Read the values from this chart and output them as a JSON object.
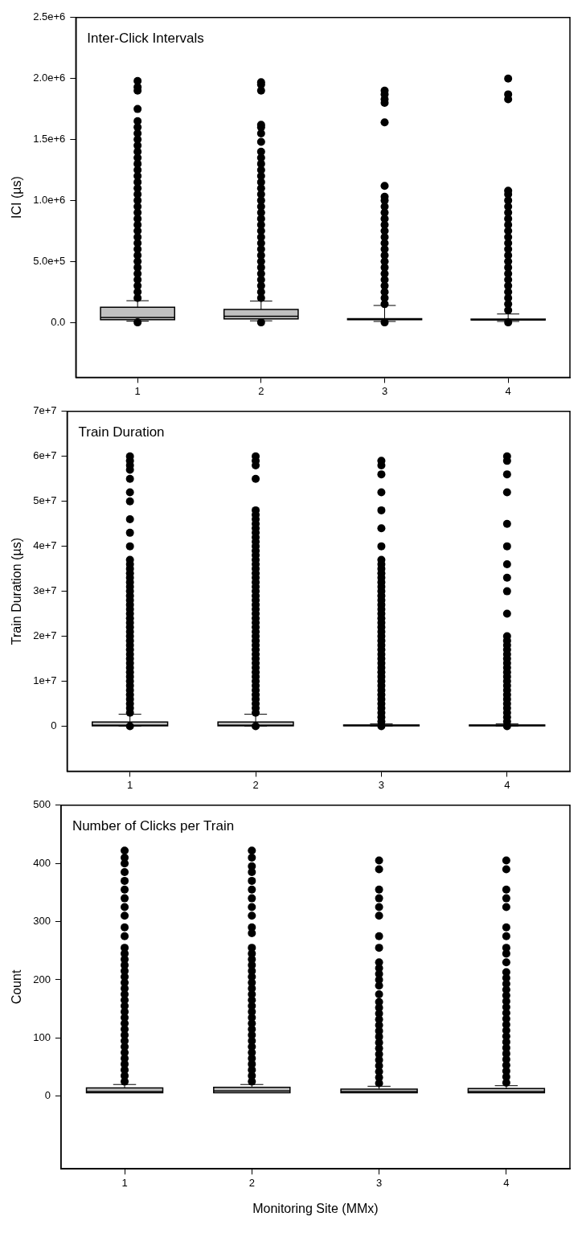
{
  "chart_data": [
    {
      "type": "box",
      "title": "Inter-Click Intervals",
      "ylabel": "ICI (µs)",
      "categories": [
        "1",
        "2",
        "3",
        "4"
      ],
      "color": "#c0c0c0",
      "ylim": [
        -450000,
        2500000
      ],
      "yticks": [
        {
          "value": 0,
          "label": "0.0"
        },
        {
          "value": 500000,
          "label": "5.0e+5"
        },
        {
          "value": 1000000,
          "label": "1.0e+6"
        },
        {
          "value": 1500000,
          "label": "1.5e+6"
        },
        {
          "value": 2000000,
          "label": "2.0e+6"
        },
        {
          "value": 2500000,
          "label": "2.5e+6"
        }
      ],
      "boxes": [
        {
          "low": 10000,
          "q1": 23000,
          "median": 40000,
          "q3": 125000,
          "high": 178000,
          "outliers": [
            0,
            200000,
            250000,
            300000,
            350000,
            400000,
            450000,
            500000,
            550000,
            600000,
            650000,
            700000,
            750000,
            800000,
            850000,
            900000,
            950000,
            1000000,
            1050000,
            1100000,
            1150000,
            1200000,
            1250000,
            1300000,
            1350000,
            1400000,
            1450000,
            1500000,
            1550000,
            1600000,
            1650000,
            1750000,
            1900000,
            1930000,
            1980000
          ]
        },
        {
          "low": 13000,
          "q1": 28000,
          "median": 51000,
          "q3": 106000,
          "high": 175000,
          "outliers": [
            0,
            200000,
            250000,
            300000,
            350000,
            400000,
            450000,
            500000,
            550000,
            600000,
            650000,
            700000,
            750000,
            800000,
            850000,
            900000,
            950000,
            1000000,
            1050000,
            1100000,
            1150000,
            1200000,
            1250000,
            1300000,
            1350000,
            1400000,
            1480000,
            1550000,
            1600000,
            1620000,
            1900000,
            1950000,
            1970000
          ]
        },
        {
          "low": 8000,
          "q1": 22000,
          "median": 26000,
          "q3": 30000,
          "high": 139000,
          "outliers": [
            0,
            150000,
            200000,
            250000,
            300000,
            350000,
            400000,
            450000,
            500000,
            550000,
            600000,
            650000,
            700000,
            750000,
            800000,
            850000,
            900000,
            950000,
            1000000,
            1030000,
            1120000,
            1640000,
            1800000,
            1830000,
            1870000,
            1900000
          ]
        },
        {
          "low": 8000,
          "q1": 20000,
          "median": 23000,
          "q3": 27000,
          "high": 69000,
          "outliers": [
            0,
            100000,
            150000,
            200000,
            250000,
            300000,
            350000,
            400000,
            450000,
            500000,
            550000,
            600000,
            650000,
            700000,
            750000,
            800000,
            850000,
            900000,
            950000,
            1000000,
            1050000,
            1080000,
            1830000,
            1870000,
            2000000
          ]
        }
      ]
    },
    {
      "type": "box",
      "title": "Train Duration",
      "ylabel": "Train Duration (µs)",
      "categories": [
        "1",
        "2",
        "3",
        "4"
      ],
      "color": "#c0c0c0",
      "ylim": [
        -10000000,
        70000000
      ],
      "yticks": [
        {
          "value": 0,
          "label": "0"
        },
        {
          "value": 10000000,
          "label": "1e+7"
        },
        {
          "value": 20000000,
          "label": "2e+7"
        },
        {
          "value": 30000000,
          "label": "3e+7"
        },
        {
          "value": 40000000,
          "label": "4e+7"
        },
        {
          "value": 50000000,
          "label": "5e+7"
        },
        {
          "value": 60000000,
          "label": "6e+7"
        },
        {
          "value": 70000000,
          "label": "7e+7"
        }
      ],
      "boxes": [
        {
          "low": 20000,
          "q1": 100000,
          "median": 200000,
          "q3": 950000,
          "high": 2650000,
          "outliers": [
            0,
            3000000,
            4000000,
            5000000,
            6000000,
            7000000,
            8000000,
            9000000,
            10000000,
            11000000,
            12000000,
            13000000,
            14000000,
            15000000,
            16000000,
            17000000,
            18000000,
            19000000,
            20000000,
            21000000,
            22000000,
            23000000,
            24000000,
            25000000,
            26000000,
            27000000,
            28000000,
            29000000,
            30000000,
            31000000,
            32000000,
            33000000,
            34000000,
            35000000,
            36000000,
            37000000,
            40000000,
            43000000,
            46000000,
            50000000,
            52000000,
            55000000,
            57000000,
            58000000,
            59000000,
            60000000
          ]
        },
        {
          "low": 20000,
          "q1": 100000,
          "median": 200000,
          "q3": 950000,
          "high": 2650000,
          "outliers": [
            0,
            3000000,
            4000000,
            5000000,
            6000000,
            7000000,
            8000000,
            9000000,
            10000000,
            11000000,
            12000000,
            13000000,
            14000000,
            15000000,
            16000000,
            17000000,
            18000000,
            19000000,
            20000000,
            21000000,
            22000000,
            23000000,
            24000000,
            25000000,
            26000000,
            27000000,
            28000000,
            29000000,
            30000000,
            31000000,
            32000000,
            33000000,
            34000000,
            35000000,
            36000000,
            37000000,
            38000000,
            39000000,
            40000000,
            41000000,
            42000000,
            43000000,
            44000000,
            45000000,
            46000000,
            47000000,
            48000000,
            55000000,
            58000000,
            59000000,
            60000000
          ]
        },
        {
          "low": 20000,
          "q1": 100000,
          "median": 150000,
          "q3": 250000,
          "high": 500000,
          "outliers": [
            0,
            1000000,
            2000000,
            3000000,
            4000000,
            5000000,
            6000000,
            7000000,
            8000000,
            9000000,
            10000000,
            11000000,
            12000000,
            13000000,
            14000000,
            15000000,
            16000000,
            17000000,
            18000000,
            19000000,
            20000000,
            21000000,
            22000000,
            23000000,
            24000000,
            25000000,
            26000000,
            27000000,
            28000000,
            29000000,
            30000000,
            31000000,
            32000000,
            33000000,
            34000000,
            35000000,
            36000000,
            37000000,
            40000000,
            44000000,
            48000000,
            52000000,
            56000000,
            58000000,
            59000000
          ]
        },
        {
          "low": 20000,
          "q1": 100000,
          "median": 150000,
          "q3": 250000,
          "high": 500000,
          "outliers": [
            0,
            1000000,
            2000000,
            3000000,
            4000000,
            5000000,
            6000000,
            7000000,
            8000000,
            9000000,
            10000000,
            11000000,
            12000000,
            13000000,
            14000000,
            15000000,
            16000000,
            17000000,
            18000000,
            19000000,
            20000000,
            25000000,
            30000000,
            33000000,
            36000000,
            40000000,
            45000000,
            52000000,
            56000000,
            59000000,
            60000000
          ]
        }
      ]
    },
    {
      "type": "box",
      "title": "Number of Clicks per Train",
      "ylabel": "Count",
      "xlabel": "Monitoring Site (MMx)",
      "categories": [
        "1",
        "2",
        "3",
        "4"
      ],
      "color": "#c0c0c0",
      "ylim": [
        -125,
        500
      ],
      "yticks": [
        0,
        100,
        200,
        300,
        400,
        500
      ],
      "boxes": [
        {
          "low": 6,
          "q1": 6,
          "median": 8,
          "q3": 14,
          "high": 20,
          "outliers": [
            25,
            35,
            45,
            55,
            65,
            75,
            85,
            95,
            105,
            115,
            125,
            135,
            145,
            155,
            165,
            175,
            185,
            195,
            205,
            215,
            225,
            235,
            245,
            255,
            275,
            290,
            310,
            325,
            340,
            355,
            370,
            385,
            400,
            410,
            422
          ]
        },
        {
          "low": 6,
          "q1": 6,
          "median": 9,
          "q3": 15,
          "high": 20,
          "outliers": [
            25,
            35,
            45,
            55,
            65,
            75,
            85,
            95,
            105,
            115,
            125,
            135,
            145,
            155,
            165,
            175,
            185,
            195,
            205,
            215,
            225,
            235,
            245,
            255,
            280,
            290,
            310,
            325,
            340,
            355,
            370,
            385,
            395,
            410,
            422
          ]
        },
        {
          "low": 6,
          "q1": 6,
          "median": 8,
          "q3": 12,
          "high": 17,
          "outliers": [
            22,
            32,
            42,
            52,
            62,
            72,
            82,
            92,
            102,
            112,
            122,
            132,
            142,
            152,
            162,
            175,
            190,
            200,
            210,
            220,
            230,
            255,
            275,
            310,
            325,
            340,
            355,
            390,
            405
          ]
        },
        {
          "low": 6,
          "q1": 6,
          "median": 8,
          "q3": 13,
          "high": 18,
          "outliers": [
            23,
            33,
            43,
            53,
            63,
            73,
            83,
            93,
            103,
            113,
            123,
            133,
            143,
            153,
            163,
            173,
            183,
            193,
            203,
            213,
            230,
            245,
            255,
            275,
            290,
            325,
            340,
            355,
            390,
            405
          ]
        }
      ]
    }
  ]
}
